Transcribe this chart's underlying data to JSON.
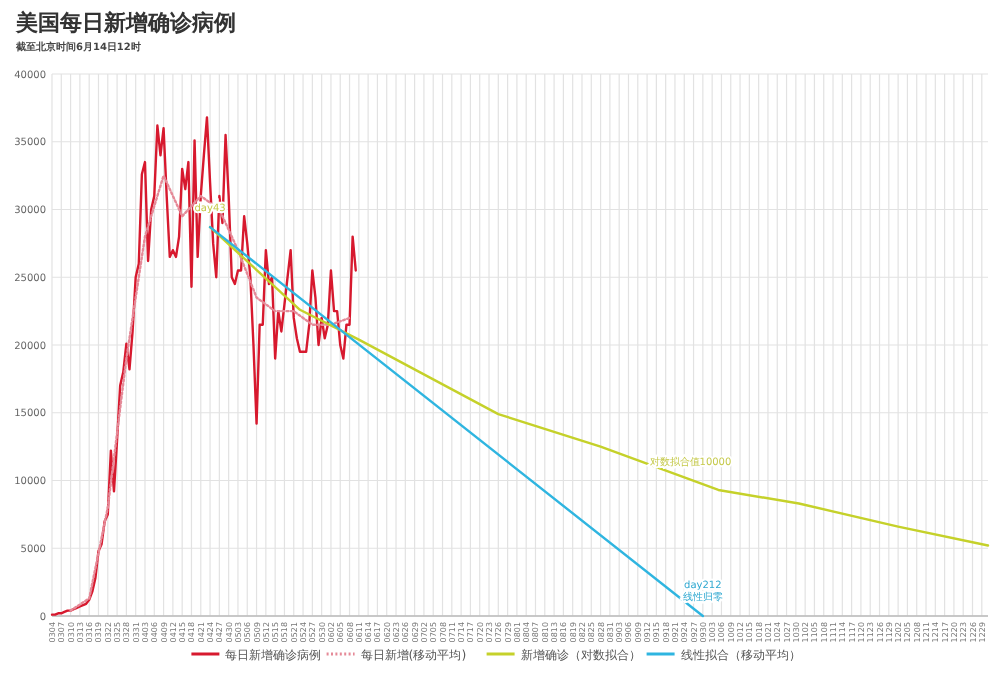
{
  "chart_data": {
    "type": "line",
    "title": "美国每日新增确诊病例",
    "subtitle": "截至北京时间6月14日12时",
    "xlim": [
      "--03-04",
      "--12-31"
    ],
    "ylim": [
      0,
      40000
    ],
    "yticks": [
      0,
      5000,
      10000,
      15000,
      20000,
      25000,
      30000,
      35000,
      40000
    ],
    "xticks": [
      {
        "value": "--03-04",
        "label": "0304"
      },
      {
        "value": "--03-07",
        "label": "0307"
      },
      {
        "value": "--03-10",
        "label": "0310"
      },
      {
        "value": "--03-13",
        "label": "0313"
      },
      {
        "value": "--03-16",
        "label": "0316"
      },
      {
        "value": "--03-19",
        "label": "0319"
      },
      {
        "value": "--03-22",
        "label": "0322"
      },
      {
        "value": "--03-25",
        "label": "0325"
      },
      {
        "value": "--03-28",
        "label": "0328"
      },
      {
        "value": "--03-31",
        "label": "0331"
      },
      {
        "value": "--04-03",
        "label": "0403"
      },
      {
        "value": "--04-06",
        "label": "0406"
      },
      {
        "value": "--04-09",
        "label": "0409"
      },
      {
        "value": "--04-12",
        "label": "0412"
      },
      {
        "value": "--04-15",
        "label": "0415"
      },
      {
        "value": "--04-18",
        "label": "0418"
      },
      {
        "value": "--04-21",
        "label": "0421"
      },
      {
        "value": "--04-24",
        "label": "0424"
      },
      {
        "value": "--04-27",
        "label": "0427"
      },
      {
        "value": "--04-30",
        "label": "0430"
      },
      {
        "value": "--05-03",
        "label": "0503"
      },
      {
        "value": "--05-06",
        "label": "0506"
      },
      {
        "value": "--05-09",
        "label": "0509"
      },
      {
        "value": "--05-12",
        "label": "0512"
      },
      {
        "value": "--05-15",
        "label": "0515"
      },
      {
        "value": "--05-18",
        "label": "0518"
      },
      {
        "value": "--05-21",
        "label": "0521"
      },
      {
        "value": "--05-24",
        "label": "0524"
      },
      {
        "value": "--05-27",
        "label": "0527"
      },
      {
        "value": "--05-30",
        "label": "0530"
      },
      {
        "value": "--06-02",
        "label": "0602"
      },
      {
        "value": "--06-05",
        "label": "0605"
      },
      {
        "value": "--06-08",
        "label": "0608"
      },
      {
        "value": "--06-11",
        "label": "0611"
      },
      {
        "value": "--06-14",
        "label": "0614"
      },
      {
        "value": "--06-17",
        "label": "0617"
      },
      {
        "value": "--06-20",
        "label": "0620"
      },
      {
        "value": "--06-23",
        "label": "0623"
      },
      {
        "value": "--06-26",
        "label": "0626"
      },
      {
        "value": "--06-29",
        "label": "0629"
      },
      {
        "value": "--07-02",
        "label": "0702"
      },
      {
        "value": "--07-05",
        "label": "0705"
      },
      {
        "value": "--07-08",
        "label": "0708"
      },
      {
        "value": "--07-11",
        "label": "0711"
      },
      {
        "value": "--07-14",
        "label": "0714"
      },
      {
        "value": "--07-17",
        "label": "0717"
      },
      {
        "value": "--07-20",
        "label": "0720"
      },
      {
        "value": "--07-23",
        "label": "0723"
      },
      {
        "value": "--07-26",
        "label": "0726"
      },
      {
        "value": "--07-29",
        "label": "0729"
      },
      {
        "value": "--08-01",
        "label": "0801"
      },
      {
        "value": "--08-04",
        "label": "0804"
      },
      {
        "value": "--08-07",
        "label": "0807"
      },
      {
        "value": "--08-10",
        "label": "0810"
      },
      {
        "value": "--08-13",
        "label": "0813"
      },
      {
        "value": "--08-16",
        "label": "0816"
      },
      {
        "value": "--08-19",
        "label": "0819"
      },
      {
        "value": "--08-22",
        "label": "0822"
      },
      {
        "value": "--08-25",
        "label": "0825"
      },
      {
        "value": "--08-28",
        "label": "0828"
      },
      {
        "value": "--08-31",
        "label": "0831"
      },
      {
        "value": "--09-03",
        "label": "0903"
      },
      {
        "value": "--09-06",
        "label": "0906"
      },
      {
        "value": "--09-09",
        "label": "0909"
      },
      {
        "value": "--09-12",
        "label": "0912"
      },
      {
        "value": "--09-15",
        "label": "0915"
      },
      {
        "value": "--09-18",
        "label": "0918"
      },
      {
        "value": "--09-21",
        "label": "0921"
      },
      {
        "value": "--09-24",
        "label": "0924"
      },
      {
        "value": "--09-27",
        "label": "0927"
      },
      {
        "value": "--09-30",
        "label": "0930"
      },
      {
        "value": "--10-03",
        "label": "1003"
      },
      {
        "value": "--10-06",
        "label": "1006"
      },
      {
        "value": "--10-09",
        "label": "1009"
      },
      {
        "value": "--10-12",
        "label": "1012"
      },
      {
        "value": "--10-15",
        "label": "1015"
      },
      {
        "value": "--10-18",
        "label": "1018"
      },
      {
        "value": "--10-21",
        "label": "1021"
      },
      {
        "value": "--10-24",
        "label": "1024"
      },
      {
        "value": "--10-27",
        "label": "1027"
      },
      {
        "value": "--10-30",
        "label": "1030"
      },
      {
        "value": "--11-02",
        "label": "1102"
      },
      {
        "value": "--11-05",
        "label": "1105"
      },
      {
        "value": "--11-08",
        "label": "1108"
      },
      {
        "value": "--11-11",
        "label": "1111"
      },
      {
        "value": "--11-14",
        "label": "1114"
      },
      {
        "value": "--11-17",
        "label": "1117"
      },
      {
        "value": "--11-20",
        "label": "1120"
      },
      {
        "value": "--11-23",
        "label": "1123"
      },
      {
        "value": "--11-26",
        "label": "1126"
      },
      {
        "value": "--11-29",
        "label": "1129"
      },
      {
        "value": "--12-02",
        "label": "1202"
      },
      {
        "value": "--12-05",
        "label": "1205"
      },
      {
        "value": "--12-08",
        "label": "1208"
      },
      {
        "value": "--12-11",
        "label": "1211"
      },
      {
        "value": "--12-14",
        "label": "1214"
      },
      {
        "value": "--12-17",
        "label": "1217"
      },
      {
        "value": "--12-20",
        "label": "1220"
      },
      {
        "value": "--12-23",
        "label": "1223"
      },
      {
        "value": "--12-26",
        "label": "1226"
      },
      {
        "value": "--12-29",
        "label": "1229"
      }
    ],
    "grid": true,
    "legend": "bottom",
    "series": [
      {
        "name": "每日新增确诊病例",
        "color": "#d7192e",
        "line_style": "solid",
        "x": [
          "--03-04",
          "--03-05",
          "--03-06",
          "--03-07",
          "--03-08",
          "--03-09",
          "--03-10",
          "--03-11",
          "--03-12",
          "--03-13",
          "--03-14",
          "--03-15",
          "--03-16",
          "--03-17",
          "--03-18",
          "--03-19",
          "--03-20",
          "--03-21",
          "--03-22",
          "--03-23",
          "--03-24",
          "--03-25",
          "--03-26",
          "--03-27",
          "--03-28",
          "--03-29",
          "--03-30",
          "--03-31",
          "--04-01",
          "--04-02",
          "--04-03",
          "--04-04",
          "--04-05",
          "--04-06",
          "--04-07",
          "--04-08",
          "--04-09",
          "--04-10",
          "--04-11",
          "--04-12",
          "--04-13",
          "--04-14",
          "--04-15",
          "--04-16",
          "--04-17",
          "--04-18",
          "--04-19",
          "--04-20",
          "--04-21",
          "--04-22",
          "--04-23",
          "--04-24",
          "--04-25",
          "--04-26",
          "--04-27",
          "--04-28",
          "--04-29",
          "--04-30",
          "--05-01",
          "--05-02",
          "--05-03",
          "--05-04",
          "--05-05",
          "--05-06",
          "--05-07",
          "--05-08",
          "--05-09",
          "--05-10",
          "--05-11",
          "--05-12",
          "--05-13",
          "--05-14",
          "--05-15",
          "--05-16",
          "--05-17",
          "--05-18",
          "--05-19",
          "--05-20",
          "--05-21",
          "--05-22",
          "--05-23",
          "--05-24",
          "--05-25",
          "--05-26",
          "--05-27",
          "--05-28",
          "--05-29",
          "--05-30",
          "--05-31",
          "--06-01",
          "--06-02",
          "--06-03",
          "--06-04",
          "--06-05",
          "--06-06",
          "--06-07",
          "--06-08",
          "--06-09",
          "--06-10"
        ],
        "values": [
          100,
          100,
          200,
          200,
          300,
          400,
          400,
          500,
          600,
          700,
          800,
          900,
          1200,
          1800,
          2800,
          4800,
          5300,
          7000,
          7500,
          12200,
          9200,
          13000,
          17000,
          18000,
          20100,
          18200,
          21000,
          25000,
          26000,
          32600,
          33500,
          26200,
          30000,
          31000,
          36200,
          34000,
          36000,
          31000,
          26500,
          27000,
          26500,
          28000,
          33000,
          31500,
          33500,
          24300,
          35100,
          26500,
          31000,
          34000,
          36800,
          32000,
          27500,
          25000,
          31000,
          29000,
          35500,
          31000,
          25000,
          24500,
          25500,
          25500,
          29500,
          27500,
          25000,
          20000,
          14200,
          21500,
          21500,
          27000,
          24500,
          25000,
          19000,
          22500,
          21000,
          23000,
          25000,
          27000,
          22000,
          20500,
          19500,
          19500,
          19500,
          21500,
          25500,
          23500,
          20000,
          22000,
          20500,
          21500,
          25500,
          22500,
          22500,
          20000,
          19000,
          21500,
          21500,
          28000,
          25500
        ]
      },
      {
        "name": "每日新增(移动平均)",
        "color": "#e58a98",
        "line_style": "dotted",
        "x": [
          "--03-10",
          "--03-16",
          "--03-22",
          "--03-28",
          "--04-03",
          "--04-09",
          "--04-15",
          "--04-21",
          "--04-27",
          "--05-03",
          "--05-09",
          "--05-15",
          "--05-21",
          "--05-27",
          "--06-02",
          "--06-08"
        ],
        "values": [
          400,
          1300,
          8000,
          19000,
          28000,
          32500,
          29500,
          31000,
          30000,
          27000,
          23500,
          22500,
          22500,
          21500,
          21500,
          22000
        ]
      },
      {
        "name": "新增确诊（对数拟合）",
        "color": "#c5d12a",
        "line_style": "solid",
        "x": [
          "--04-24",
          "--05-23",
          "--06-11",
          "--07-26",
          "--08-28",
          "--10-05",
          "--10-31",
          "--12-02",
          "--12-31"
        ],
        "values": [
          28700,
          22600,
          20400,
          14900,
          12500,
          9300,
          8300,
          6600,
          5200
        ]
      },
      {
        "name": "线性拟合（移动平均）",
        "color": "#2fb5e0",
        "line_style": "solid",
        "x": [
          "--04-24",
          "--09-30"
        ],
        "values": [
          28700,
          0
        ]
      }
    ],
    "annotations": [
      {
        "text": "day43",
        "x": "--04-24",
        "y": 28700
      },
      {
        "text": "对数拟合值10000",
        "x": "--09-26",
        "y": 10000
      },
      {
        "text": "day212 线性归零",
        "x": "--09-30",
        "y": 0
      }
    ]
  }
}
